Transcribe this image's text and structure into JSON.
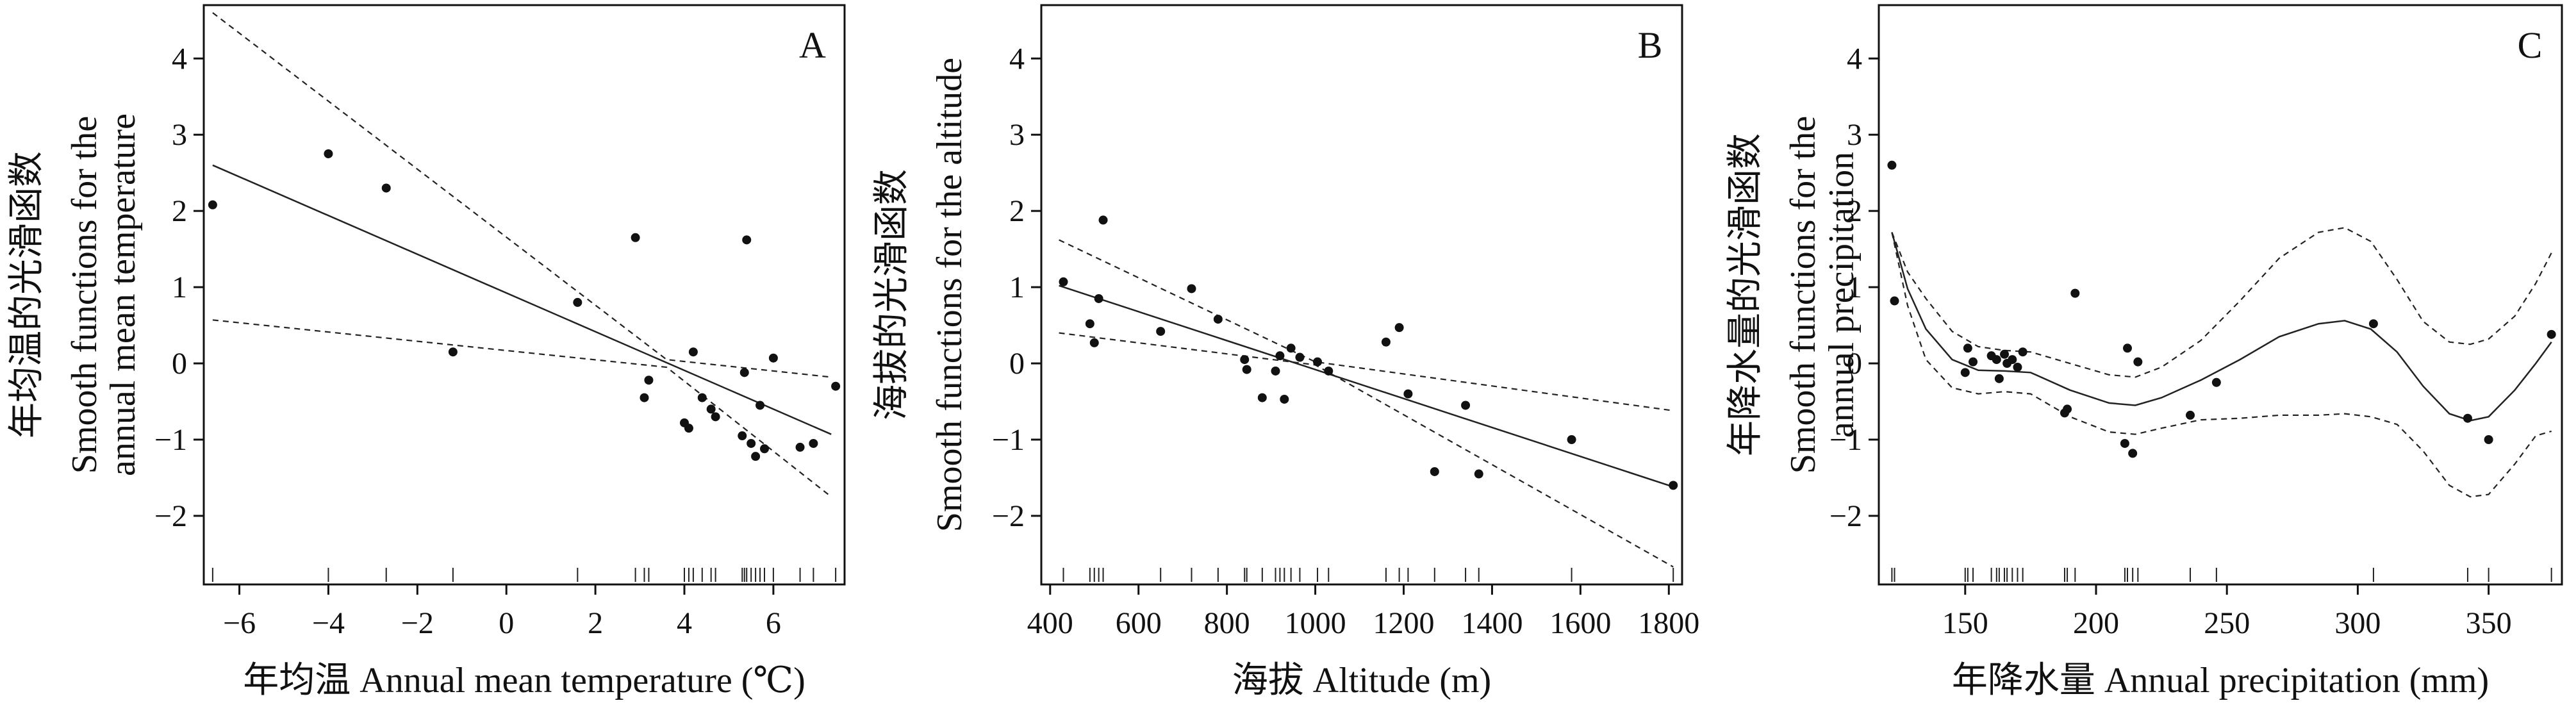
{
  "chart_data": [
    {
      "type": "scatter",
      "panel_label": "A",
      "xlabel": "年均温 Annual mean temperature (℃)",
      "ylabel_lines": [
        "年均温的光滑函数",
        "Smooth functions for the",
        "annual mean temperature"
      ],
      "xlim": [
        -6.8,
        7.6
      ],
      "ylim": [
        -2.9,
        4.7
      ],
      "xticks": [
        -6,
        -4,
        -2,
        0,
        2,
        4,
        6
      ],
      "xtick_labels": [
        "−6",
        "−4",
        "−2",
        "0",
        "2",
        "4",
        "6"
      ],
      "yticks": [
        -2,
        -1,
        0,
        1,
        2,
        3,
        4
      ],
      "ytick_labels": [
        "−2",
        "−1",
        "0",
        "1",
        "2",
        "3",
        "4"
      ],
      "points": [
        {
          "x": -6.6,
          "y": 2.08
        },
        {
          "x": -4.0,
          "y": 2.75
        },
        {
          "x": -2.7,
          "y": 2.3
        },
        {
          "x": -1.2,
          "y": 0.15
        },
        {
          "x": 1.6,
          "y": 0.8
        },
        {
          "x": 2.9,
          "y": 1.65
        },
        {
          "x": 3.1,
          "y": -0.45
        },
        {
          "x": 3.2,
          "y": -0.22
        },
        {
          "x": 4.0,
          "y": -0.78
        },
        {
          "x": 4.1,
          "y": -0.85
        },
        {
          "x": 4.2,
          "y": 0.15
        },
        {
          "x": 4.4,
          "y": -0.45
        },
        {
          "x": 4.6,
          "y": -0.6
        },
        {
          "x": 4.7,
          "y": -0.7
        },
        {
          "x": 5.3,
          "y": -0.95
        },
        {
          "x": 5.35,
          "y": -0.12
        },
        {
          "x": 5.4,
          "y": 1.62
        },
        {
          "x": 5.5,
          "y": -1.05
        },
        {
          "x": 5.6,
          "y": -1.22
        },
        {
          "x": 5.7,
          "y": -0.55
        },
        {
          "x": 5.8,
          "y": -1.12
        },
        {
          "x": 6.0,
          "y": 0.07
        },
        {
          "x": 6.6,
          "y": -1.1
        },
        {
          "x": 6.9,
          "y": -1.05
        },
        {
          "x": 7.4,
          "y": -0.3
        }
      ],
      "fit": [
        {
          "x": -6.6,
          "y": 2.6
        },
        {
          "x": 7.3,
          "y": -0.93
        }
      ],
      "ci_upper": [
        {
          "x": -6.6,
          "y": 4.6
        },
        {
          "x": 3.6,
          "y": 0.05
        },
        {
          "x": 7.3,
          "y": -0.18
        }
      ],
      "ci_lower": [
        {
          "x": -6.6,
          "y": 0.57
        },
        {
          "x": 3.6,
          "y": -0.05
        },
        {
          "x": 7.3,
          "y": -1.75
        }
      ],
      "rug": [
        -6.6,
        -4.0,
        -2.7,
        -1.2,
        1.6,
        2.9,
        3.1,
        3.2,
        4.0,
        4.1,
        4.2,
        4.4,
        4.6,
        4.7,
        5.3,
        5.35,
        5.4,
        5.5,
        5.6,
        5.7,
        5.8,
        6.0,
        6.6,
        6.9,
        7.4
      ]
    },
    {
      "type": "scatter",
      "panel_label": "B",
      "xlabel": "海拔 Altitude (m)",
      "ylabel_lines": [
        "海拔的光滑函数",
        "Smooth functions for the altitude"
      ],
      "xlim": [
        380,
        1830
      ],
      "ylim": [
        -2.9,
        4.7
      ],
      "xticks": [
        400,
        600,
        800,
        1000,
        1200,
        1400,
        1600,
        1800
      ],
      "xtick_labels": [
        "400",
        "600",
        "800",
        "1000",
        "1200",
        "1400",
        "1600",
        "1800"
      ],
      "yticks": [
        -2,
        -1,
        0,
        1,
        2,
        3,
        4
      ],
      "ytick_labels": [
        "−2",
        "−1",
        "0",
        "1",
        "2",
        "3",
        "4"
      ],
      "points": [
        {
          "x": 430,
          "y": 1.07
        },
        {
          "x": 490,
          "y": 0.52
        },
        {
          "x": 500,
          "y": 0.27
        },
        {
          "x": 510,
          "y": 0.85
        },
        {
          "x": 520,
          "y": 1.88
        },
        {
          "x": 650,
          "y": 0.42
        },
        {
          "x": 720,
          "y": 0.98
        },
        {
          "x": 780,
          "y": 0.58
        },
        {
          "x": 840,
          "y": 0.05
        },
        {
          "x": 845,
          "y": -0.08
        },
        {
          "x": 880,
          "y": -0.45
        },
        {
          "x": 910,
          "y": -0.1
        },
        {
          "x": 920,
          "y": 0.1
        },
        {
          "x": 930,
          "y": -0.47
        },
        {
          "x": 945,
          "y": 0.2
        },
        {
          "x": 965,
          "y": 0.08
        },
        {
          "x": 1005,
          "y": 0.02
        },
        {
          "x": 1030,
          "y": -0.1
        },
        {
          "x": 1160,
          "y": 0.28
        },
        {
          "x": 1190,
          "y": 0.47
        },
        {
          "x": 1210,
          "y": -0.4
        },
        {
          "x": 1270,
          "y": -1.42
        },
        {
          "x": 1340,
          "y": -0.55
        },
        {
          "x": 1370,
          "y": -1.45
        },
        {
          "x": 1580,
          "y": -1.0
        },
        {
          "x": 1810,
          "y": -1.6
        }
      ],
      "fit": [
        {
          "x": 420,
          "y": 1.02
        },
        {
          "x": 1810,
          "y": -1.62
        }
      ],
      "ci_upper": [
        {
          "x": 420,
          "y": 1.62
        },
        {
          "x": 1000,
          "y": 0.02
        },
        {
          "x": 1810,
          "y": -0.62
        }
      ],
      "ci_lower": [
        {
          "x": 420,
          "y": 0.4
        },
        {
          "x": 1000,
          "y": -0.02
        },
        {
          "x": 1810,
          "y": -2.67
        }
      ],
      "rug": [
        430,
        490,
        500,
        510,
        520,
        650,
        720,
        780,
        840,
        845,
        880,
        910,
        920,
        930,
        945,
        965,
        1005,
        1030,
        1160,
        1190,
        1210,
        1270,
        1340,
        1370,
        1580,
        1810
      ]
    },
    {
      "type": "scatter",
      "panel_label": "C",
      "xlabel": "年降水量 Annual precipitation (mm)",
      "ylabel_lines": [
        "年降水量的光滑函数",
        "Smooth functions for the",
        "annual precipitation"
      ],
      "xlim": [
        117,
        378
      ],
      "ylim": [
        -2.9,
        4.7
      ],
      "xticks": [
        150,
        200,
        250,
        300,
        350
      ],
      "xtick_labels": [
        "150",
        "200",
        "250",
        "300",
        "350"
      ],
      "yticks": [
        -2,
        -1,
        0,
        1,
        2,
        3,
        4
      ],
      "ytick_labels": [
        "−2",
        "−1",
        "0",
        "1",
        "2",
        "3",
        "4"
      ],
      "points": [
        {
          "x": 122,
          "y": 2.6
        },
        {
          "x": 123,
          "y": 0.82
        },
        {
          "x": 150,
          "y": -0.12
        },
        {
          "x": 151,
          "y": 0.2
        },
        {
          "x": 153,
          "y": 0.02
        },
        {
          "x": 160,
          "y": 0.1
        },
        {
          "x": 162,
          "y": 0.05
        },
        {
          "x": 163,
          "y": -0.2
        },
        {
          "x": 165,
          "y": 0.12
        },
        {
          "x": 166,
          "y": 0.0
        },
        {
          "x": 168,
          "y": 0.05
        },
        {
          "x": 170,
          "y": -0.05
        },
        {
          "x": 172,
          "y": 0.15
        },
        {
          "x": 188,
          "y": -0.65
        },
        {
          "x": 189,
          "y": -0.6
        },
        {
          "x": 192,
          "y": 0.92
        },
        {
          "x": 211,
          "y": -1.05
        },
        {
          "x": 212,
          "y": 0.2
        },
        {
          "x": 214,
          "y": -1.18
        },
        {
          "x": 216,
          "y": 0.02
        },
        {
          "x": 236,
          "y": -0.68
        },
        {
          "x": 246,
          "y": -0.25
        },
        {
          "x": 306,
          "y": 0.52
        },
        {
          "x": 342,
          "y": -0.72
        },
        {
          "x": 350,
          "y": -1.0
        },
        {
          "x": 374,
          "y": 0.38
        }
      ],
      "fit": [
        {
          "x": 122,
          "y": 1.72
        },
        {
          "x": 128,
          "y": 0.98
        },
        {
          "x": 135,
          "y": 0.45
        },
        {
          "x": 145,
          "y": 0.05
        },
        {
          "x": 155,
          "y": -0.09
        },
        {
          "x": 165,
          "y": -0.1
        },
        {
          "x": 175,
          "y": -0.12
        },
        {
          "x": 190,
          "y": -0.35
        },
        {
          "x": 205,
          "y": -0.52
        },
        {
          "x": 215,
          "y": -0.55
        },
        {
          "x": 225,
          "y": -0.45
        },
        {
          "x": 240,
          "y": -0.22
        },
        {
          "x": 255,
          "y": 0.05
        },
        {
          "x": 270,
          "y": 0.35
        },
        {
          "x": 285,
          "y": 0.52
        },
        {
          "x": 295,
          "y": 0.56
        },
        {
          "x": 305,
          "y": 0.45
        },
        {
          "x": 315,
          "y": 0.15
        },
        {
          "x": 325,
          "y": -0.3
        },
        {
          "x": 335,
          "y": -0.66
        },
        {
          "x": 343,
          "y": -0.75
        },
        {
          "x": 350,
          "y": -0.7
        },
        {
          "x": 360,
          "y": -0.35
        },
        {
          "x": 368,
          "y": 0.0
        },
        {
          "x": 374,
          "y": 0.28
        }
      ],
      "ci_upper": [
        {
          "x": 122,
          "y": 1.72
        },
        {
          "x": 128,
          "y": 1.2
        },
        {
          "x": 135,
          "y": 0.85
        },
        {
          "x": 145,
          "y": 0.42
        },
        {
          "x": 155,
          "y": 0.22
        },
        {
          "x": 165,
          "y": 0.17
        },
        {
          "x": 175,
          "y": 0.15
        },
        {
          "x": 190,
          "y": 0.0
        },
        {
          "x": 205,
          "y": -0.15
        },
        {
          "x": 215,
          "y": -0.18
        },
        {
          "x": 225,
          "y": -0.05
        },
        {
          "x": 240,
          "y": 0.3
        },
        {
          "x": 255,
          "y": 0.82
        },
        {
          "x": 270,
          "y": 1.38
        },
        {
          "x": 285,
          "y": 1.72
        },
        {
          "x": 295,
          "y": 1.78
        },
        {
          "x": 305,
          "y": 1.6
        },
        {
          "x": 315,
          "y": 1.1
        },
        {
          "x": 325,
          "y": 0.55
        },
        {
          "x": 335,
          "y": 0.28
        },
        {
          "x": 343,
          "y": 0.25
        },
        {
          "x": 350,
          "y": 0.32
        },
        {
          "x": 360,
          "y": 0.62
        },
        {
          "x": 368,
          "y": 1.05
        },
        {
          "x": 374,
          "y": 1.45
        }
      ],
      "ci_lower": [
        {
          "x": 122,
          "y": 1.72
        },
        {
          "x": 128,
          "y": 0.76
        },
        {
          "x": 135,
          "y": 0.05
        },
        {
          "x": 145,
          "y": -0.32
        },
        {
          "x": 155,
          "y": -0.4
        },
        {
          "x": 165,
          "y": -0.37
        },
        {
          "x": 175,
          "y": -0.4
        },
        {
          "x": 190,
          "y": -0.7
        },
        {
          "x": 205,
          "y": -0.9
        },
        {
          "x": 215,
          "y": -0.93
        },
        {
          "x": 225,
          "y": -0.85
        },
        {
          "x": 240,
          "y": -0.74
        },
        {
          "x": 255,
          "y": -0.72
        },
        {
          "x": 270,
          "y": -0.68
        },
        {
          "x": 285,
          "y": -0.68
        },
        {
          "x": 295,
          "y": -0.66
        },
        {
          "x": 305,
          "y": -0.7
        },
        {
          "x": 315,
          "y": -0.8
        },
        {
          "x": 325,
          "y": -1.15
        },
        {
          "x": 335,
          "y": -1.6
        },
        {
          "x": 343,
          "y": -1.75
        },
        {
          "x": 350,
          "y": -1.72
        },
        {
          "x": 360,
          "y": -1.32
        },
        {
          "x": 368,
          "y": -0.95
        },
        {
          "x": 374,
          "y": -0.89
        }
      ],
      "rug": [
        122,
        123,
        150,
        151,
        153,
        160,
        162,
        163,
        165,
        166,
        168,
        170,
        172,
        188,
        189,
        192,
        211,
        212,
        214,
        216,
        236,
        246,
        306,
        342,
        350,
        374
      ]
    }
  ]
}
